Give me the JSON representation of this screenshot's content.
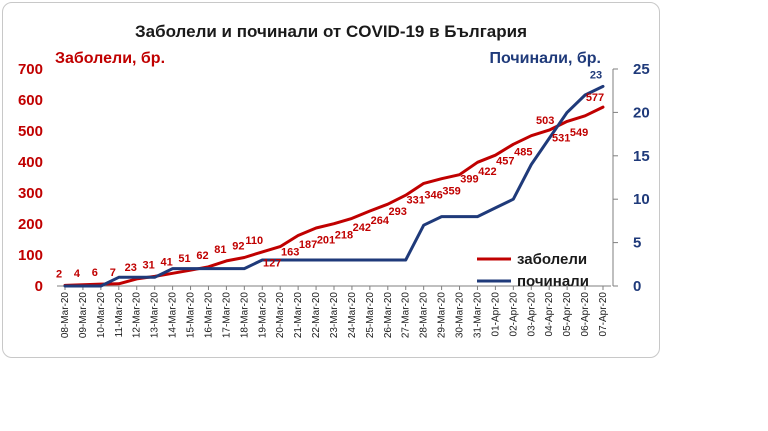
{
  "chart_data": {
    "type": "line",
    "title": "Заболели и починали от COVID-19 в България",
    "ylabel": "Заболели, бр.",
    "y2label": "Починали, бр.",
    "ylim": [
      0,
      700
    ],
    "y2lim": [
      0,
      25
    ],
    "yticks": [
      "0",
      "100",
      "200",
      "300",
      "400",
      "500",
      "600",
      "700"
    ],
    "y2ticks": [
      "0",
      "5",
      "10",
      "15",
      "20",
      "25"
    ],
    "grid": false,
    "legend": "right",
    "categories": [
      "08-Mar-20",
      "09-Mar-20",
      "10-Mar-20",
      "11-Mar-20",
      "12-Mar-20",
      "13-Mar-20",
      "14-Mar-20",
      "15-Mar-20",
      "16-Mar-20",
      "17-Mar-20",
      "18-Mar-20",
      "19-Mar-20",
      "20-Mar-20",
      "21-Mar-20",
      "22-Mar-20",
      "23-Mar-20",
      "24-Mar-20",
      "25-Mar-20",
      "26-Mar-20",
      "27-Mar-20",
      "28-Mar-20",
      "29-Mar-20",
      "30-Mar-20",
      "31-Mar-20",
      "01-Apr-20",
      "02-Apr-20",
      "03-Apr-20",
      "04-Apr-20",
      "05-Apr-20",
      "06-Apr-20",
      "07-Apr-20"
    ],
    "series": [
      {
        "name": "заболели",
        "axis": "left",
        "color": "#c00000",
        "values": [
          2,
          4,
          6,
          7,
          23,
          31,
          41,
          51,
          62,
          81,
          92,
          110,
          127,
          163,
          187,
          201,
          218,
          242,
          264,
          293,
          331,
          346,
          359,
          399,
          422,
          457,
          485,
          503,
          531,
          549,
          577
        ],
        "labels": [
          "2",
          "4",
          "6",
          "7",
          "23",
          "31",
          "41",
          "51",
          "62",
          "81",
          "92",
          "110",
          "127",
          "163",
          "187",
          "201",
          "218",
          "242",
          "264",
          "293",
          "331",
          "346",
          "359",
          "399",
          "422",
          "457",
          "485",
          "503",
          "531",
          "549",
          "577"
        ]
      },
      {
        "name": "починали",
        "axis": "right",
        "color": "#1f3a7a",
        "values": [
          0,
          0,
          0,
          1,
          1,
          1,
          2,
          2,
          2,
          2,
          2,
          3,
          3,
          3,
          3,
          3,
          3,
          3,
          3,
          3,
          7,
          8,
          8,
          8,
          9,
          10,
          14,
          17,
          20,
          22,
          23
        ],
        "labels": [
          "23"
        ]
      }
    ]
  }
}
